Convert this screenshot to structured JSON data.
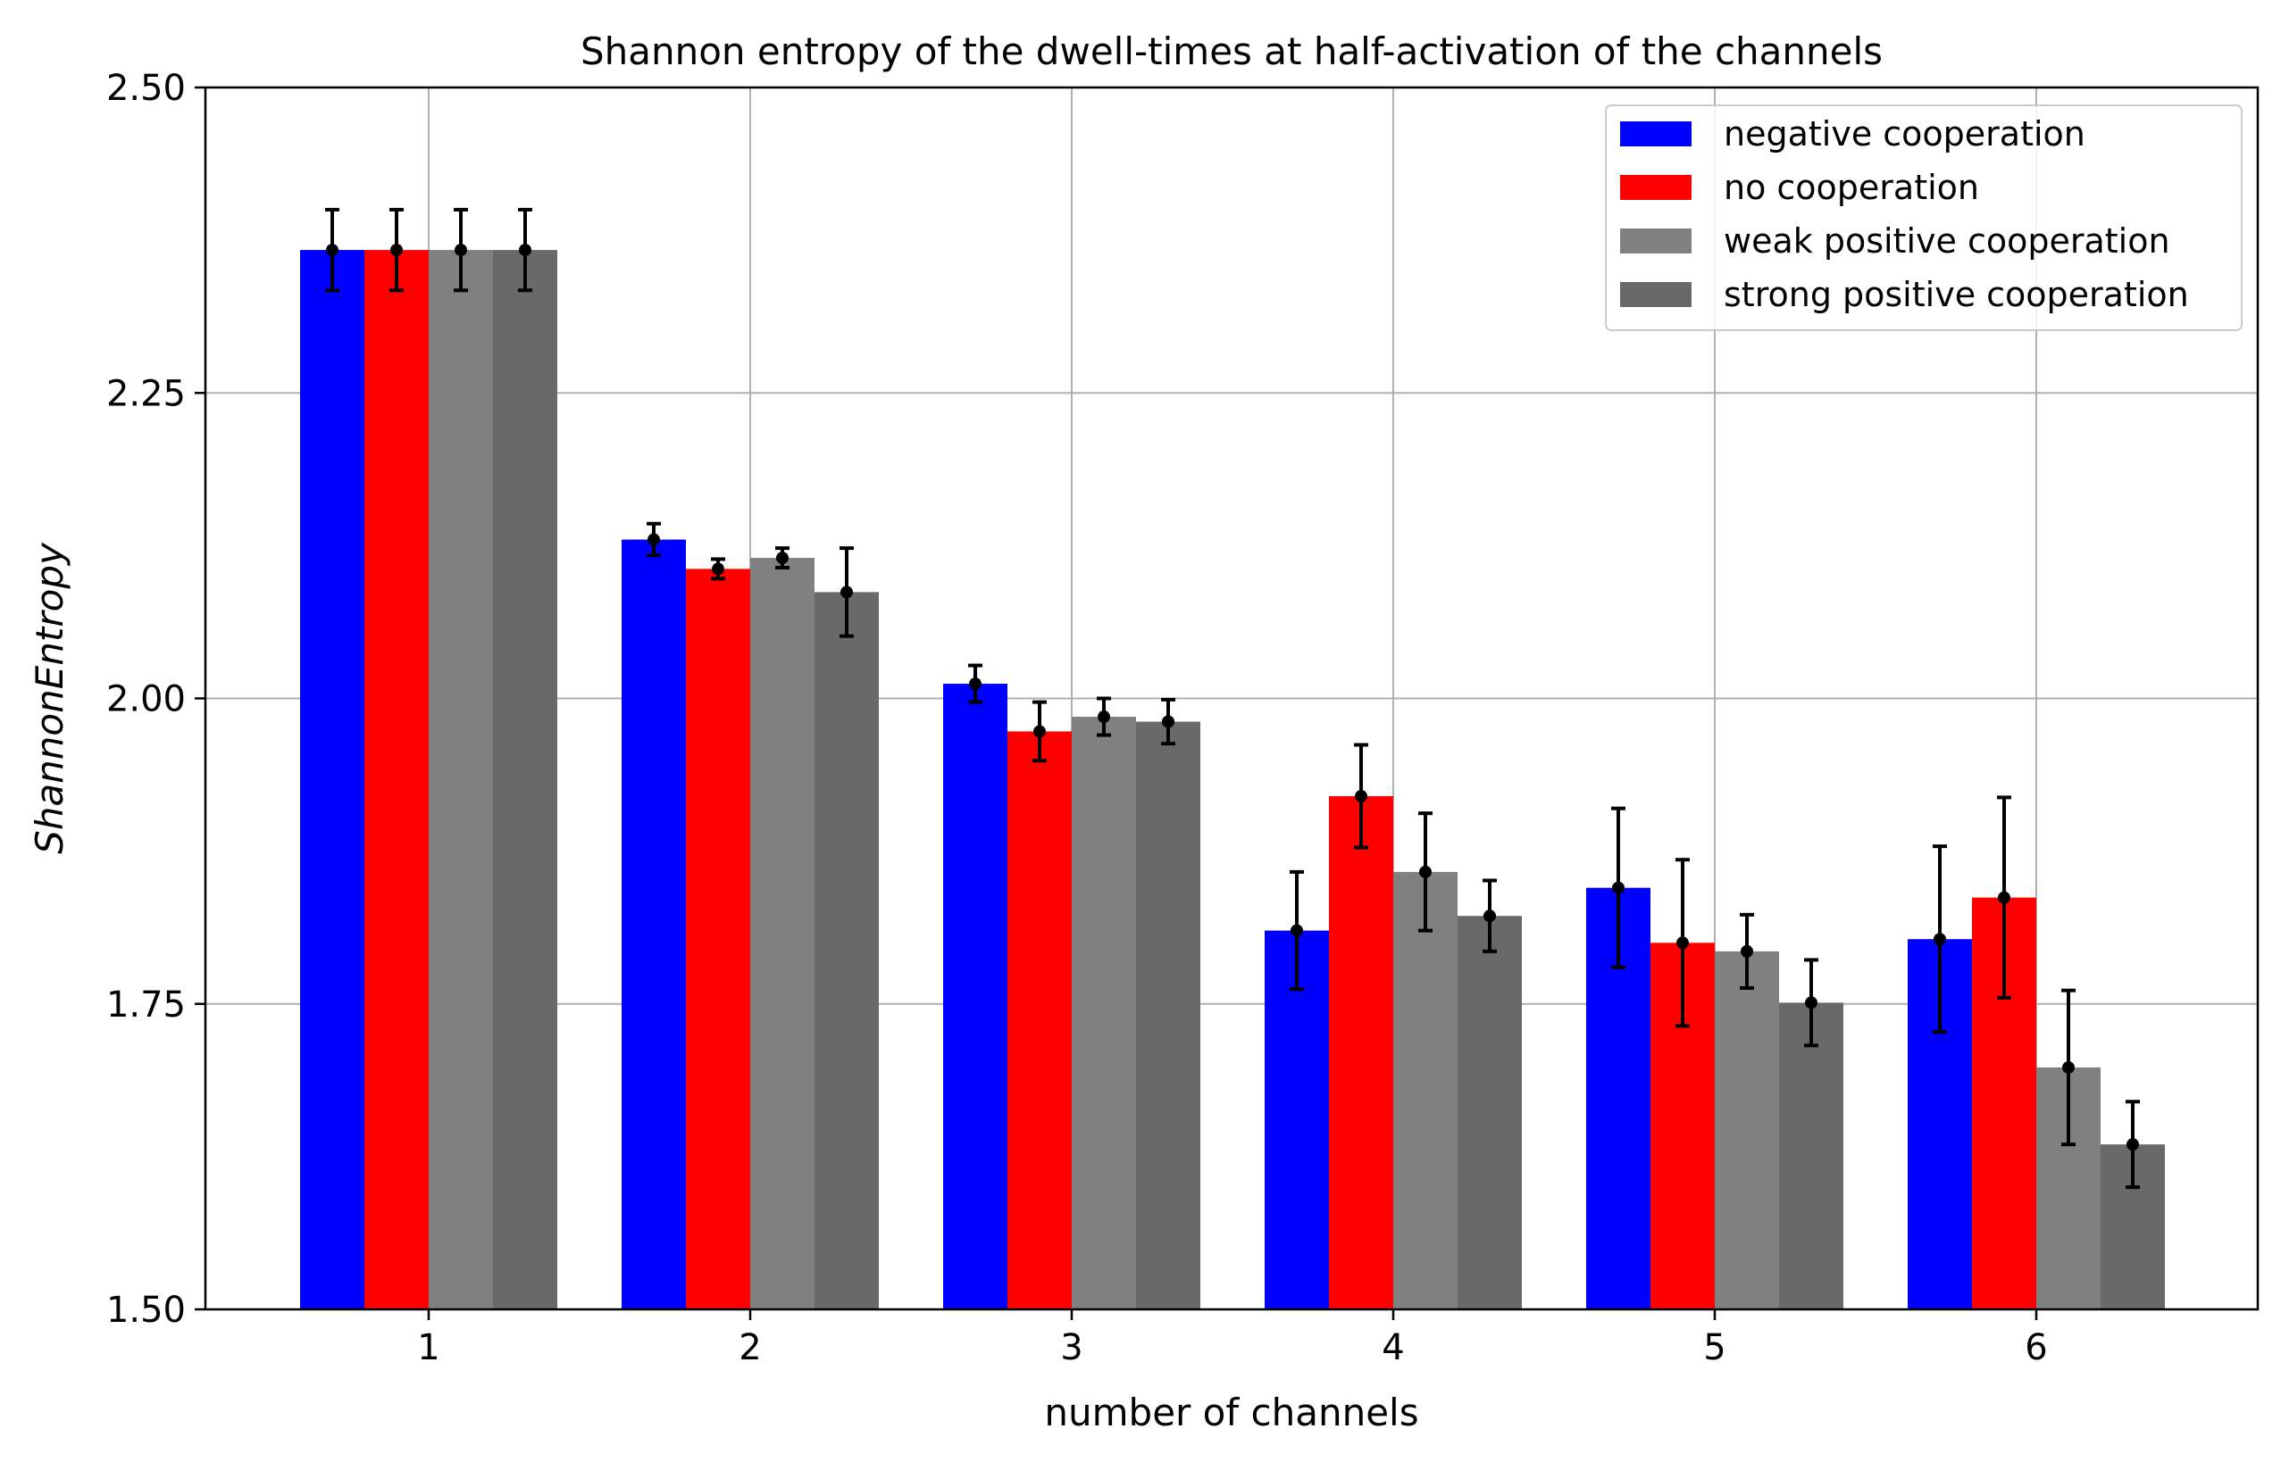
{
  "chart_data": {
    "type": "bar",
    "title": "Shannon entropy of the dwell-times at half-activation of the channels",
    "xlabel": "number of channels",
    "ylabel": "ShannonEntropy",
    "ylim": [
      1.5,
      2.5
    ],
    "yticks": [
      1.5,
      1.75,
      2.0,
      2.25,
      2.5
    ],
    "ytick_labels": [
      "1.50",
      "1.75",
      "2.00",
      "2.25",
      "2.50"
    ],
    "categories": [
      "1",
      "2",
      "3",
      "4",
      "5",
      "6"
    ],
    "grid": true,
    "legend_position": "top-right",
    "series": [
      {
        "name": "negative cooperation",
        "color": "#0000ff",
        "values": [
          2.367,
          2.13,
          2.012,
          1.81,
          1.845,
          1.803
        ],
        "errors": [
          0.033,
          0.013,
          0.015,
          0.048,
          0.065,
          0.076
        ]
      },
      {
        "name": "no cooperation",
        "color": "#ff0000",
        "values": [
          2.367,
          2.106,
          1.973,
          1.92,
          1.8,
          1.837
        ],
        "errors": [
          0.033,
          0.008,
          0.024,
          0.042,
          0.068,
          0.082
        ]
      },
      {
        "name": "weak positive cooperation",
        "color": "#808080",
        "values": [
          2.367,
          2.115,
          1.985,
          1.858,
          1.793,
          1.698
        ],
        "errors": [
          0.033,
          0.008,
          0.015,
          0.048,
          0.03,
          0.063
        ]
      },
      {
        "name": "strong positive cooperation",
        "color": "#696969",
        "values": [
          2.367,
          2.087,
          1.981,
          1.822,
          1.751,
          1.635
        ],
        "errors": [
          0.033,
          0.036,
          0.018,
          0.029,
          0.035,
          0.035
        ]
      }
    ]
  }
}
